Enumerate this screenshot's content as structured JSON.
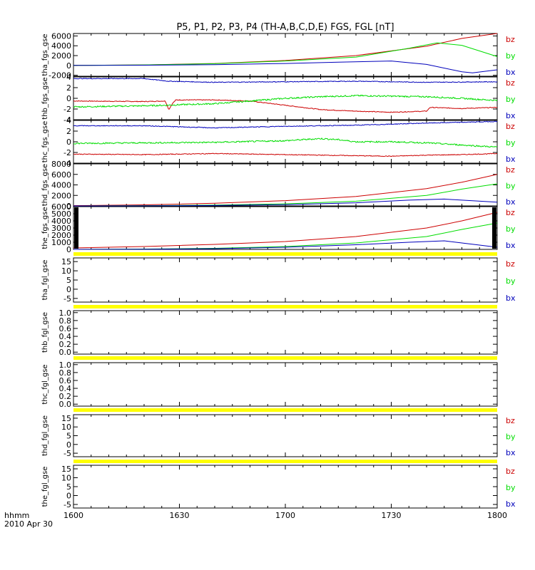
{
  "title": "P5, P1, P2, P3, P4 (TH-A,B,C,D,E) FGS, FGL [nT]",
  "colors": {
    "bz": "#cc0000",
    "by": "#00dd00",
    "bx": "#0000bb",
    "flag": "#ffff00"
  },
  "x_axis": {
    "ticks": [
      "1600",
      "1630",
      "1700",
      "1730",
      "1800"
    ],
    "tick_values_min": [
      0,
      30,
      60,
      90,
      120
    ],
    "units_label": "hhmm",
    "date_label": "2010 Apr 30"
  },
  "chart_data": [
    {
      "type": "line",
      "ylabel": "tha_fgs_gse",
      "ylim": [
        -2200,
        6500
      ],
      "yticks": [
        "-2000",
        "0",
        "2000",
        "4000",
        "6000"
      ],
      "ytick_values": [
        -2000,
        0,
        2000,
        4000,
        6000
      ],
      "legend": [
        "bz",
        "by",
        "bx"
      ],
      "series": [
        {
          "name": "bz",
          "x": [
            0,
            20,
            40,
            60,
            80,
            100,
            110,
            120
          ],
          "y": [
            0,
            100,
            400,
            1000,
            2000,
            3900,
            5500,
            6500
          ]
        },
        {
          "name": "by",
          "x": [
            0,
            20,
            40,
            60,
            80,
            95,
            103,
            110,
            120
          ],
          "y": [
            0,
            100,
            350,
            900,
            1700,
            3500,
            4600,
            4100,
            1800
          ]
        },
        {
          "name": "bx",
          "x": [
            0,
            20,
            40,
            60,
            75,
            90,
            100,
            110,
            113,
            120
          ],
          "y": [
            0,
            50,
            150,
            400,
            650,
            900,
            200,
            -1300,
            -1500,
            -900
          ]
        }
      ]
    },
    {
      "type": "line",
      "ylabel": "thb_fgs_gse",
      "ylim": [
        -4,
        4
      ],
      "yticks": [
        "-4",
        "-2",
        "0",
        "2",
        "4"
      ],
      "ytick_values": [
        -4,
        -2,
        0,
        2,
        4
      ],
      "legend": [
        "bz",
        "by",
        "bx"
      ],
      "series": [
        {
          "name": "bz",
          "x": [
            0,
            20,
            26,
            27,
            28,
            29,
            40,
            50,
            60,
            70,
            80,
            90,
            100,
            101,
            110,
            120
          ],
          "y": [
            -0.5,
            -0.6,
            -0.5,
            -2.1,
            -1.0,
            -0.3,
            -0.3,
            -0.5,
            -1.3,
            -2.1,
            -2.4,
            -2.6,
            -2.4,
            -1.7,
            -1.9,
            -1.7
          ]
        },
        {
          "name": "by",
          "x": [
            0,
            20,
            26,
            30,
            40,
            50,
            60,
            70,
            80,
            90,
            100,
            110,
            120
          ],
          "y": [
            -1.6,
            -1.4,
            -1.3,
            -1.2,
            -1.0,
            -0.5,
            0,
            0.3,
            0.5,
            0.4,
            0.3,
            0.0,
            -0.4
          ]
        },
        {
          "name": "bx",
          "x": [
            0,
            20,
            27,
            40,
            60,
            80,
            100,
            120
          ],
          "y": [
            3.7,
            3.7,
            3.2,
            3.0,
            3.1,
            3.2,
            3.0,
            3.1
          ]
        }
      ]
    },
    {
      "type": "line",
      "ylabel": "thc_fgs_gse",
      "ylim": [
        -4,
        4
      ],
      "yticks": [
        "-4",
        "-2",
        "0",
        "2",
        "4"
      ],
      "ytick_values": [
        -4,
        -2,
        0,
        2,
        4
      ],
      "legend": [
        "bz",
        "by",
        "bx"
      ],
      "series": [
        {
          "name": "bz",
          "x": [
            0,
            20,
            40,
            60,
            80,
            90,
            100,
            110,
            120
          ],
          "y": [
            -2.3,
            -2.4,
            -2.2,
            -2.4,
            -2.6,
            -2.7,
            -2.5,
            -2.4,
            -2.2
          ]
        },
        {
          "name": "by",
          "x": [
            0,
            20,
            40,
            60,
            70,
            75,
            80,
            90,
            100,
            110,
            120
          ],
          "y": [
            -0.3,
            -0.2,
            -0.1,
            0.2,
            0.6,
            0.4,
            0.0,
            0.0,
            -0.2,
            -0.6,
            -1.0
          ]
        },
        {
          "name": "bx",
          "x": [
            0,
            20,
            40,
            60,
            80,
            100,
            120
          ],
          "y": [
            3.0,
            3.0,
            2.6,
            2.9,
            3.1,
            3.5,
            3.8
          ]
        }
      ]
    },
    {
      "type": "line",
      "ylabel": "thd_fgs_gse",
      "ylim": [
        0,
        8000
      ],
      "yticks": [
        "0",
        "2000",
        "4000",
        "6000",
        "8000"
      ],
      "ytick_values": [
        0,
        2000,
        4000,
        6000,
        8000
      ],
      "legend": [
        "bz",
        "by",
        "bx"
      ],
      "series": [
        {
          "name": "bz",
          "x": [
            0,
            20,
            40,
            60,
            80,
            100,
            110,
            120
          ],
          "y": [
            50,
            200,
            500,
            1000,
            1800,
            3300,
            4500,
            6000
          ]
        },
        {
          "name": "by",
          "x": [
            0,
            20,
            40,
            60,
            80,
            100,
            110,
            120
          ],
          "y": [
            0,
            50,
            150,
            400,
            900,
            2000,
            3200,
            4200
          ]
        },
        {
          "name": "bx",
          "x": [
            0,
            20,
            40,
            60,
            80,
            95,
            105,
            110,
            120
          ],
          "y": [
            0,
            20,
            80,
            250,
            600,
            1100,
            1300,
            1100,
            700
          ]
        }
      ]
    },
    {
      "type": "line",
      "ylabel": "the_fgs_gse",
      "ylim": [
        0,
        6000
      ],
      "yticks": [
        "0",
        "1000",
        "2000",
        "3000",
        "4000",
        "5000",
        "6000"
      ],
      "ytick_values": [
        0,
        1000,
        2000,
        3000,
        4000,
        5000,
        6000
      ],
      "legend": [
        "bz",
        "by",
        "bx"
      ],
      "series": [
        {
          "name": "bz",
          "x": [
            0,
            20,
            40,
            60,
            80,
            100,
            110,
            120
          ],
          "y": [
            200,
            400,
            700,
            1100,
            1800,
            3000,
            4000,
            5200
          ]
        },
        {
          "name": "by",
          "x": [
            0,
            20,
            40,
            60,
            80,
            100,
            110,
            120
          ],
          "y": [
            0,
            50,
            150,
            400,
            900,
            1800,
            2800,
            3700
          ]
        },
        {
          "name": "bx",
          "x": [
            0,
            20,
            40,
            60,
            80,
            95,
            105,
            110,
            120
          ],
          "y": [
            0,
            30,
            100,
            300,
            650,
            1000,
            1200,
            900,
            300
          ]
        }
      ]
    },
    {
      "type": "line",
      "ylabel": "tha_fgl_gse",
      "ylim": [
        -7,
        17
      ],
      "yticks": [
        "-5",
        "0",
        "5",
        "10",
        "15"
      ],
      "ytick_values": [
        -5,
        0,
        5,
        10,
        15
      ],
      "legend": [
        "bz",
        "by",
        "bx"
      ],
      "series": []
    },
    {
      "type": "line",
      "ylabel": "thb_fgl_gse",
      "ylim": [
        -0.05,
        1.05
      ],
      "yticks": [
        "0.0",
        "0.2",
        "0.4",
        "0.6",
        "0.8",
        "1.0"
      ],
      "ytick_values": [
        0,
        0.2,
        0.4,
        0.6,
        0.8,
        1.0
      ],
      "legend": [],
      "series": []
    },
    {
      "type": "line",
      "ylabel": "thc_fgl_gse",
      "ylim": [
        -0.05,
        1.05
      ],
      "yticks": [
        "0.0",
        "0.2",
        "0.4",
        "0.6",
        "0.8",
        "1.0"
      ],
      "ytick_values": [
        0,
        0.2,
        0.4,
        0.6,
        0.8,
        1.0
      ],
      "legend": [],
      "series": []
    },
    {
      "type": "line",
      "ylabel": "thd_fgl_gse",
      "ylim": [
        -7,
        17
      ],
      "yticks": [
        "-5",
        "0",
        "5",
        "10",
        "15"
      ],
      "ytick_values": [
        -5,
        0,
        5,
        10,
        15
      ],
      "legend": [
        "bz",
        "by",
        "bx"
      ],
      "series": []
    },
    {
      "type": "line",
      "ylabel": "the_fgl_gse",
      "ylim": [
        -7,
        17
      ],
      "yticks": [
        "-5",
        "0",
        "5",
        "10",
        "15"
      ],
      "ytick_values": [
        -5,
        0,
        5,
        10,
        15
      ],
      "legend": [
        "bz",
        "by",
        "bx"
      ],
      "series": []
    }
  ]
}
